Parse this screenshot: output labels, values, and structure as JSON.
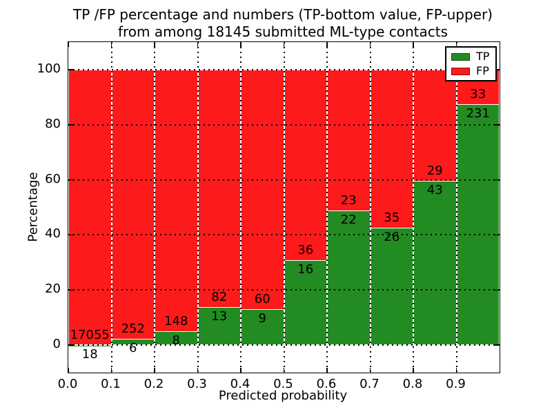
{
  "title": {
    "line1": "TP /FP percentage and numbers (TP-bottom value, FP-upper)",
    "line2": "from among 18145 submitted ML-type contacts"
  },
  "colors": {
    "tp_green": "#228b22",
    "fp_red": "#fc1a1a",
    "background": "#ffffff",
    "axis": "#000000"
  },
  "chart_data": {
    "type": "bar",
    "stacked": true,
    "orientation": "vertical",
    "title": "TP /FP percentage and numbers (TP-bottom value, FP-upper) from among 18145 submitted ML-type contacts",
    "xlabel": "Predicted probability",
    "ylabel": "Percentage",
    "x_tick_labels": [
      "0.0",
      "0.1",
      "0.2",
      "0.3",
      "0.4",
      "0.5",
      "0.6",
      "0.7",
      "0.8",
      "0.9"
    ],
    "y_tick_values": [
      0,
      20,
      40,
      60,
      80,
      100
    ],
    "xlim": [
      0.0,
      1.0
    ],
    "ylim": [
      -10,
      110
    ],
    "grid": true,
    "bin_width": 0.1,
    "total_contacts": 18145,
    "bins": [
      {
        "range_start": 0.0,
        "tp": 18,
        "fp": 17055
      },
      {
        "range_start": 0.1,
        "tp": 6,
        "fp": 252
      },
      {
        "range_start": 0.2,
        "tp": 8,
        "fp": 148
      },
      {
        "range_start": 0.3,
        "tp": 13,
        "fp": 82
      },
      {
        "range_start": 0.4,
        "tp": 9,
        "fp": 60
      },
      {
        "range_start": 0.5,
        "tp": 16,
        "fp": 36
      },
      {
        "range_start": 0.6,
        "tp": 22,
        "fp": 23
      },
      {
        "range_start": 0.7,
        "tp": 26,
        "fp": 35
      },
      {
        "range_start": 0.8,
        "tp": 43,
        "fp": 29
      },
      {
        "range_start": 0.9,
        "tp": 231,
        "fp": 33
      }
    ],
    "tp_percentages": [
      0.1,
      2.3,
      5.1,
      13.7,
      13.0,
      30.8,
      48.9,
      42.6,
      59.7,
      87.5
    ],
    "legend": [
      {
        "label": "TP",
        "color": "#228b22"
      },
      {
        "label": "FP",
        "color": "#fc1a1a"
      }
    ],
    "legend_position": "upper right"
  }
}
